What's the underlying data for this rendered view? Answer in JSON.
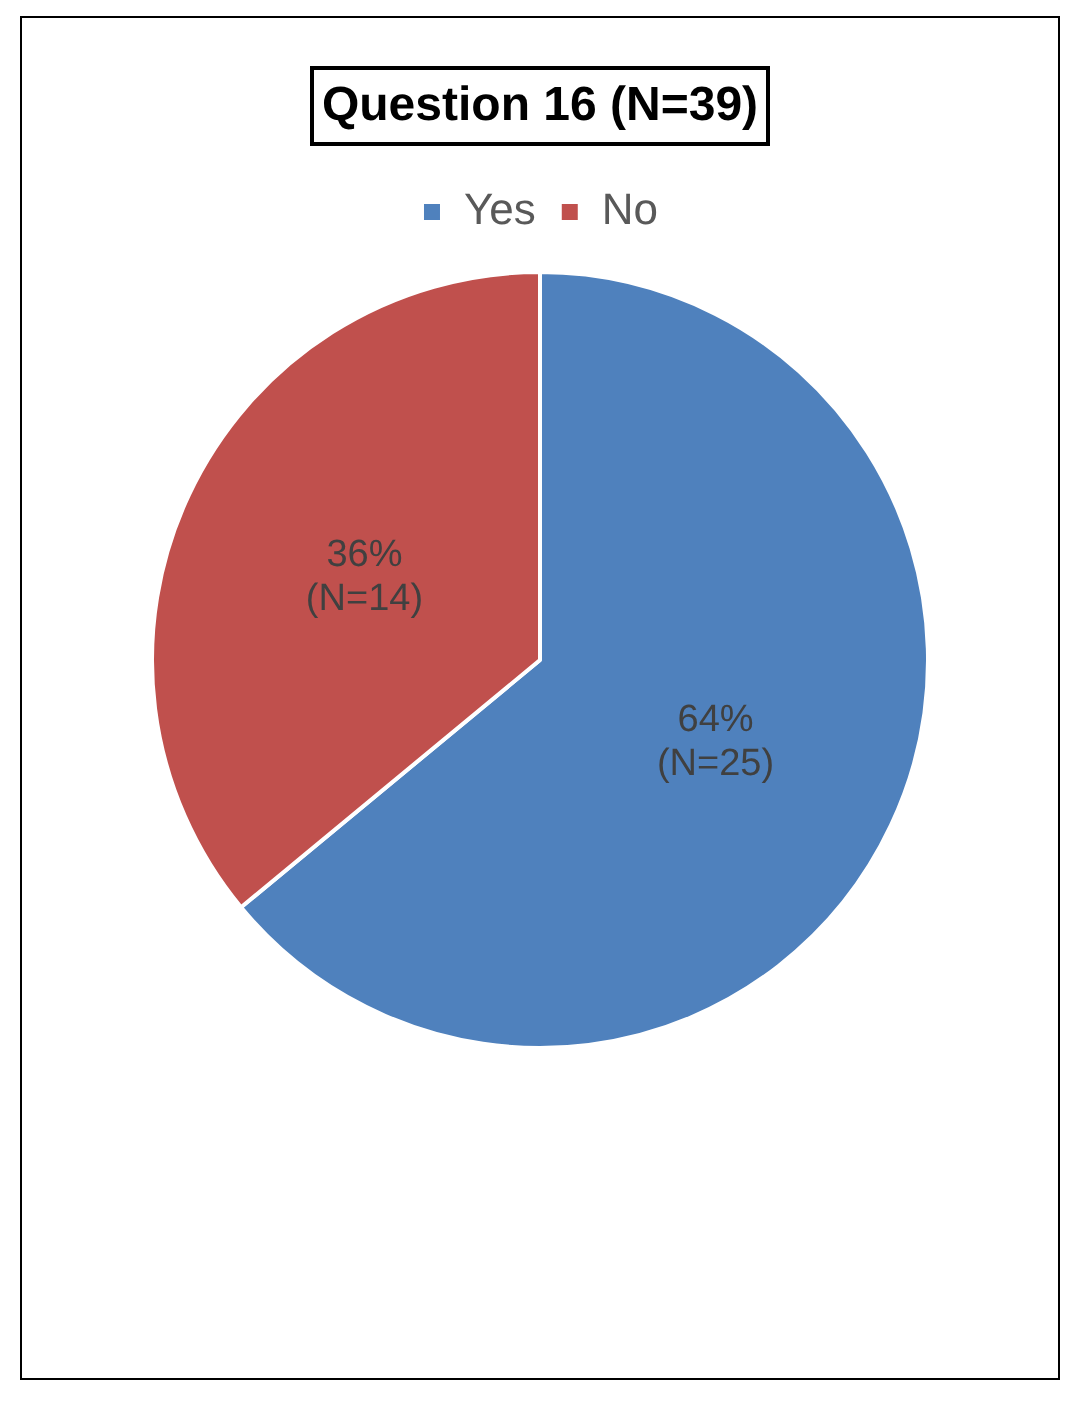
{
  "chart_data": {
    "type": "pie",
    "title": "Question 16 (N=39)",
    "categories": [
      "Yes",
      "No"
    ],
    "values": [
      64,
      36
    ],
    "value_labels": [
      "64%\n(N=25)",
      "36%\n(N=14)"
    ],
    "colors": [
      "#4f81bd",
      "#c0504d"
    ],
    "legend": "top"
  }
}
